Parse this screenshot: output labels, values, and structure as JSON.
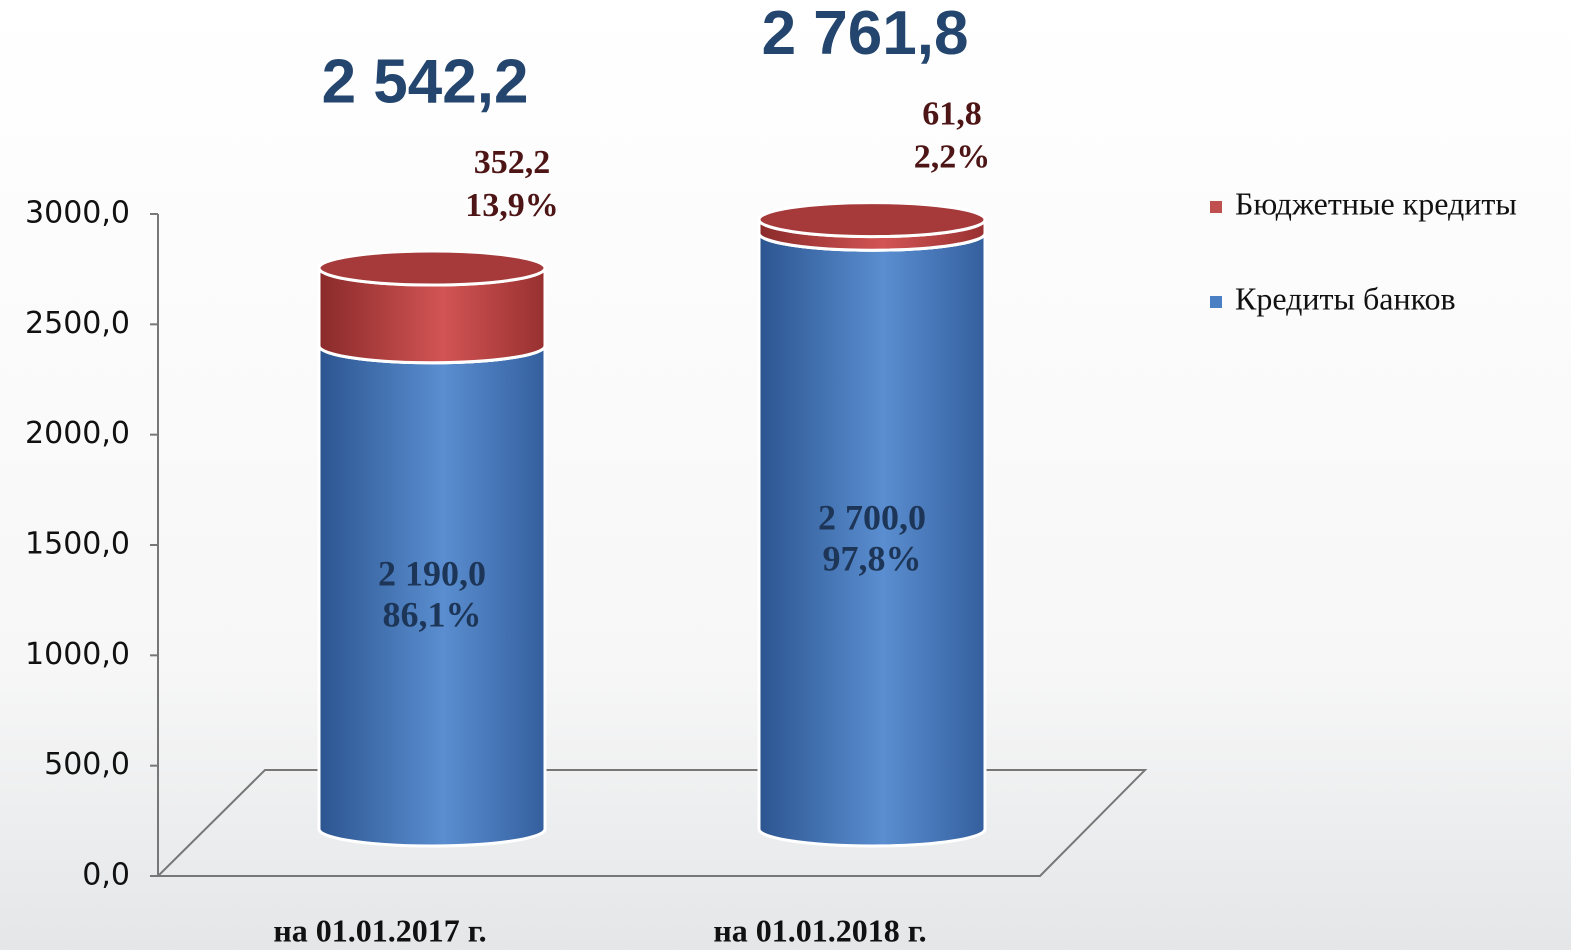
{
  "chart_data": {
    "type": "stacked_cylinder",
    "categories": [
      "на 01.01.2017 г.",
      "на 01.01.2018 г."
    ],
    "series": [
      {
        "name": "Кредиты банков",
        "color": "#4a7fc4",
        "values": [
          2190.0,
          2700.0
        ],
        "value_labels": [
          "2 190,0",
          "2 700,0"
        ],
        "shares": [
          86.1,
          97.8
        ],
        "share_labels": [
          "86,1%",
          "97,8%"
        ]
      },
      {
        "name": "Бюджетные кредиты",
        "color": "#c0504d",
        "values": [
          352.2,
          61.8
        ],
        "value_labels": [
          "352,2",
          "61,8"
        ],
        "shares": [
          13.9,
          2.2
        ],
        "share_labels": [
          "13,9%",
          "2,2%"
        ]
      }
    ],
    "totals": [
      2542.2,
      2761.8
    ],
    "total_labels": [
      "2 542,2",
      "2 761,8"
    ],
    "ylim": [
      0,
      3000
    ],
    "yticks": [
      {
        "value": 0,
        "label": "0,0"
      },
      {
        "value": 500,
        "label": "500,0"
      },
      {
        "value": 1000,
        "label": "1000,0"
      },
      {
        "value": 1500,
        "label": "1500,0"
      },
      {
        "value": 2000,
        "label": "2000,0"
      },
      {
        "value": 2500,
        "label": "2500,0"
      },
      {
        "value": 3000,
        "label": "3000,0"
      }
    ],
    "legend": "right"
  }
}
